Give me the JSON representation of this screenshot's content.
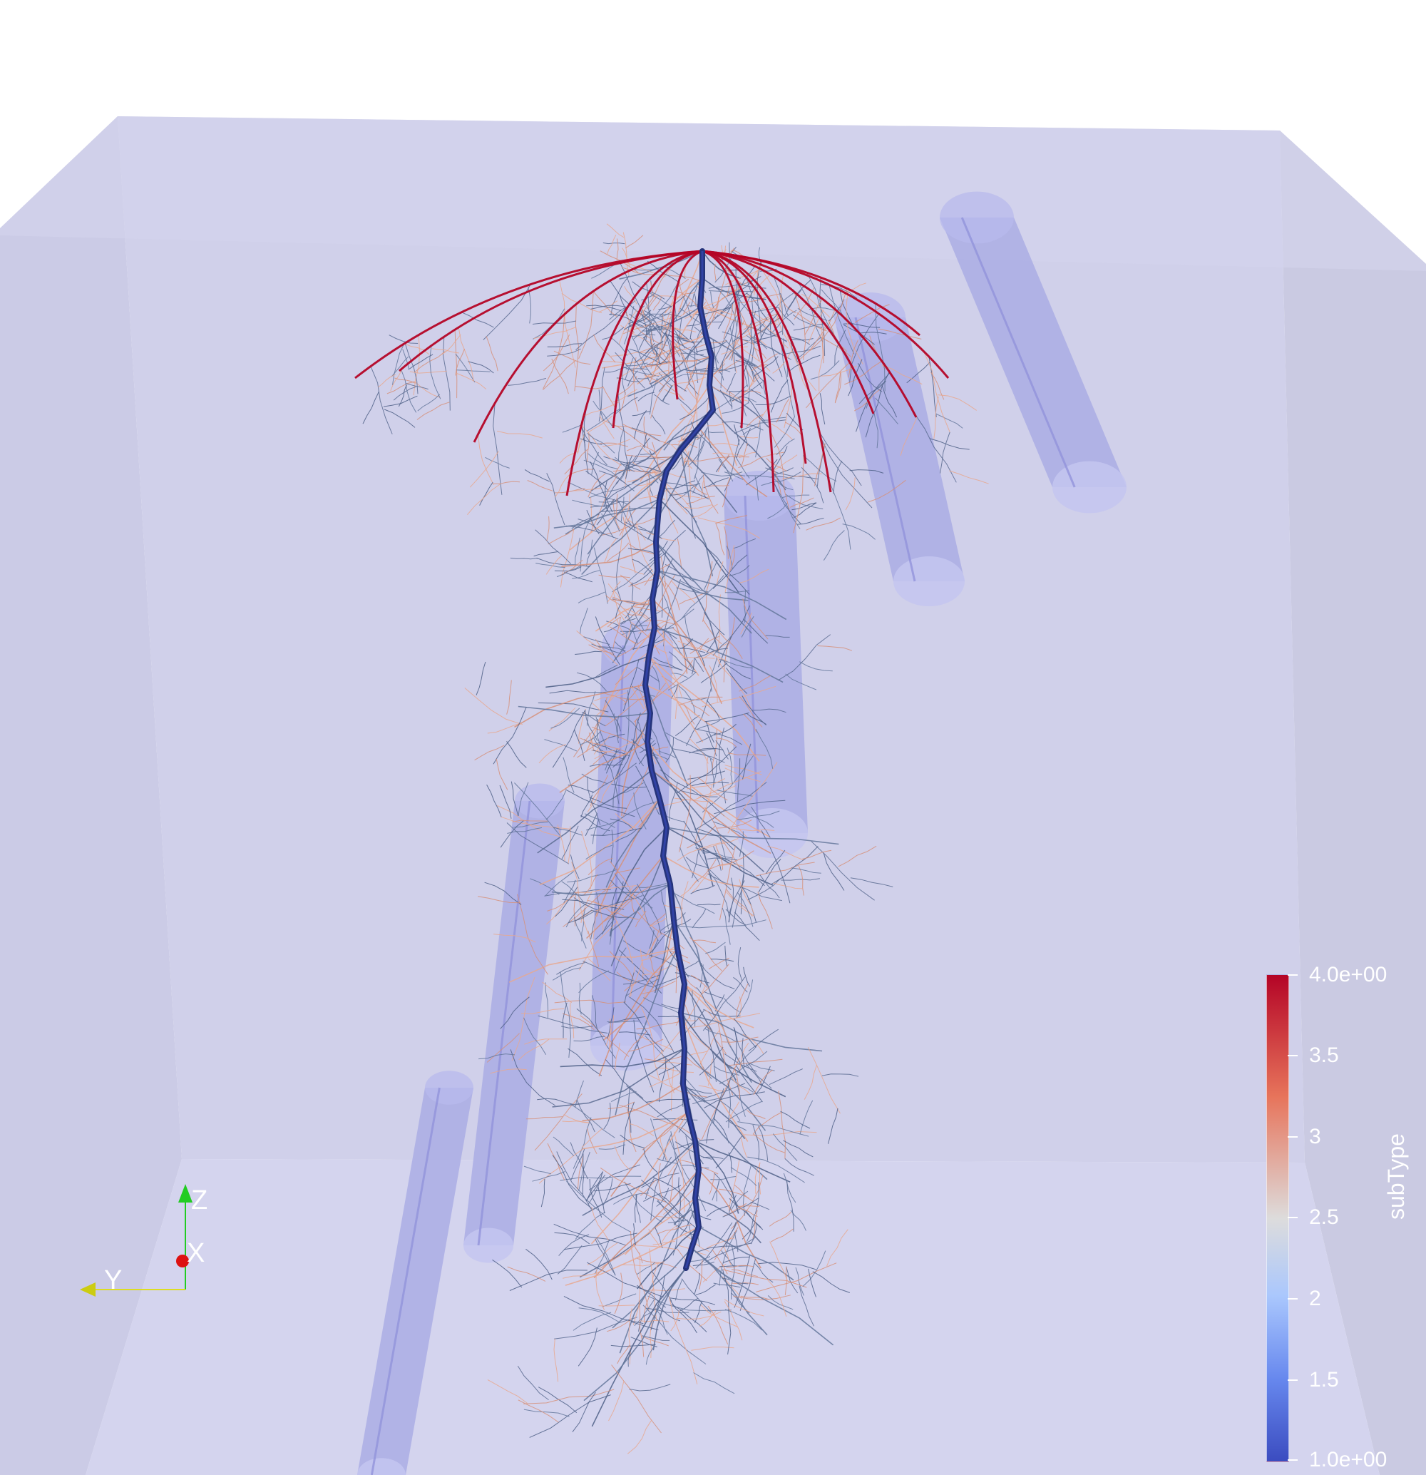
{
  "scene": {
    "background": "#ffffff",
    "box_color": "#cfd0ea",
    "obstacle_color": "#a3a5e3",
    "obstacles": 7
  },
  "orientation_axes": {
    "z_label": "Z",
    "x_label": "X",
    "y_label": "Y",
    "z_color": "#22cc22",
    "x_color": "#dd1111",
    "y_color": "#dddd22"
  },
  "colorbar": {
    "title": "subType",
    "ticks": [
      "4.0e+00",
      "3.5",
      "3",
      "2.5",
      "2",
      "1.5",
      "1.0e+00"
    ],
    "colors": {
      "high": "#b40426",
      "mid": "#dddcdc",
      "low": "#3b4cc0"
    }
  }
}
